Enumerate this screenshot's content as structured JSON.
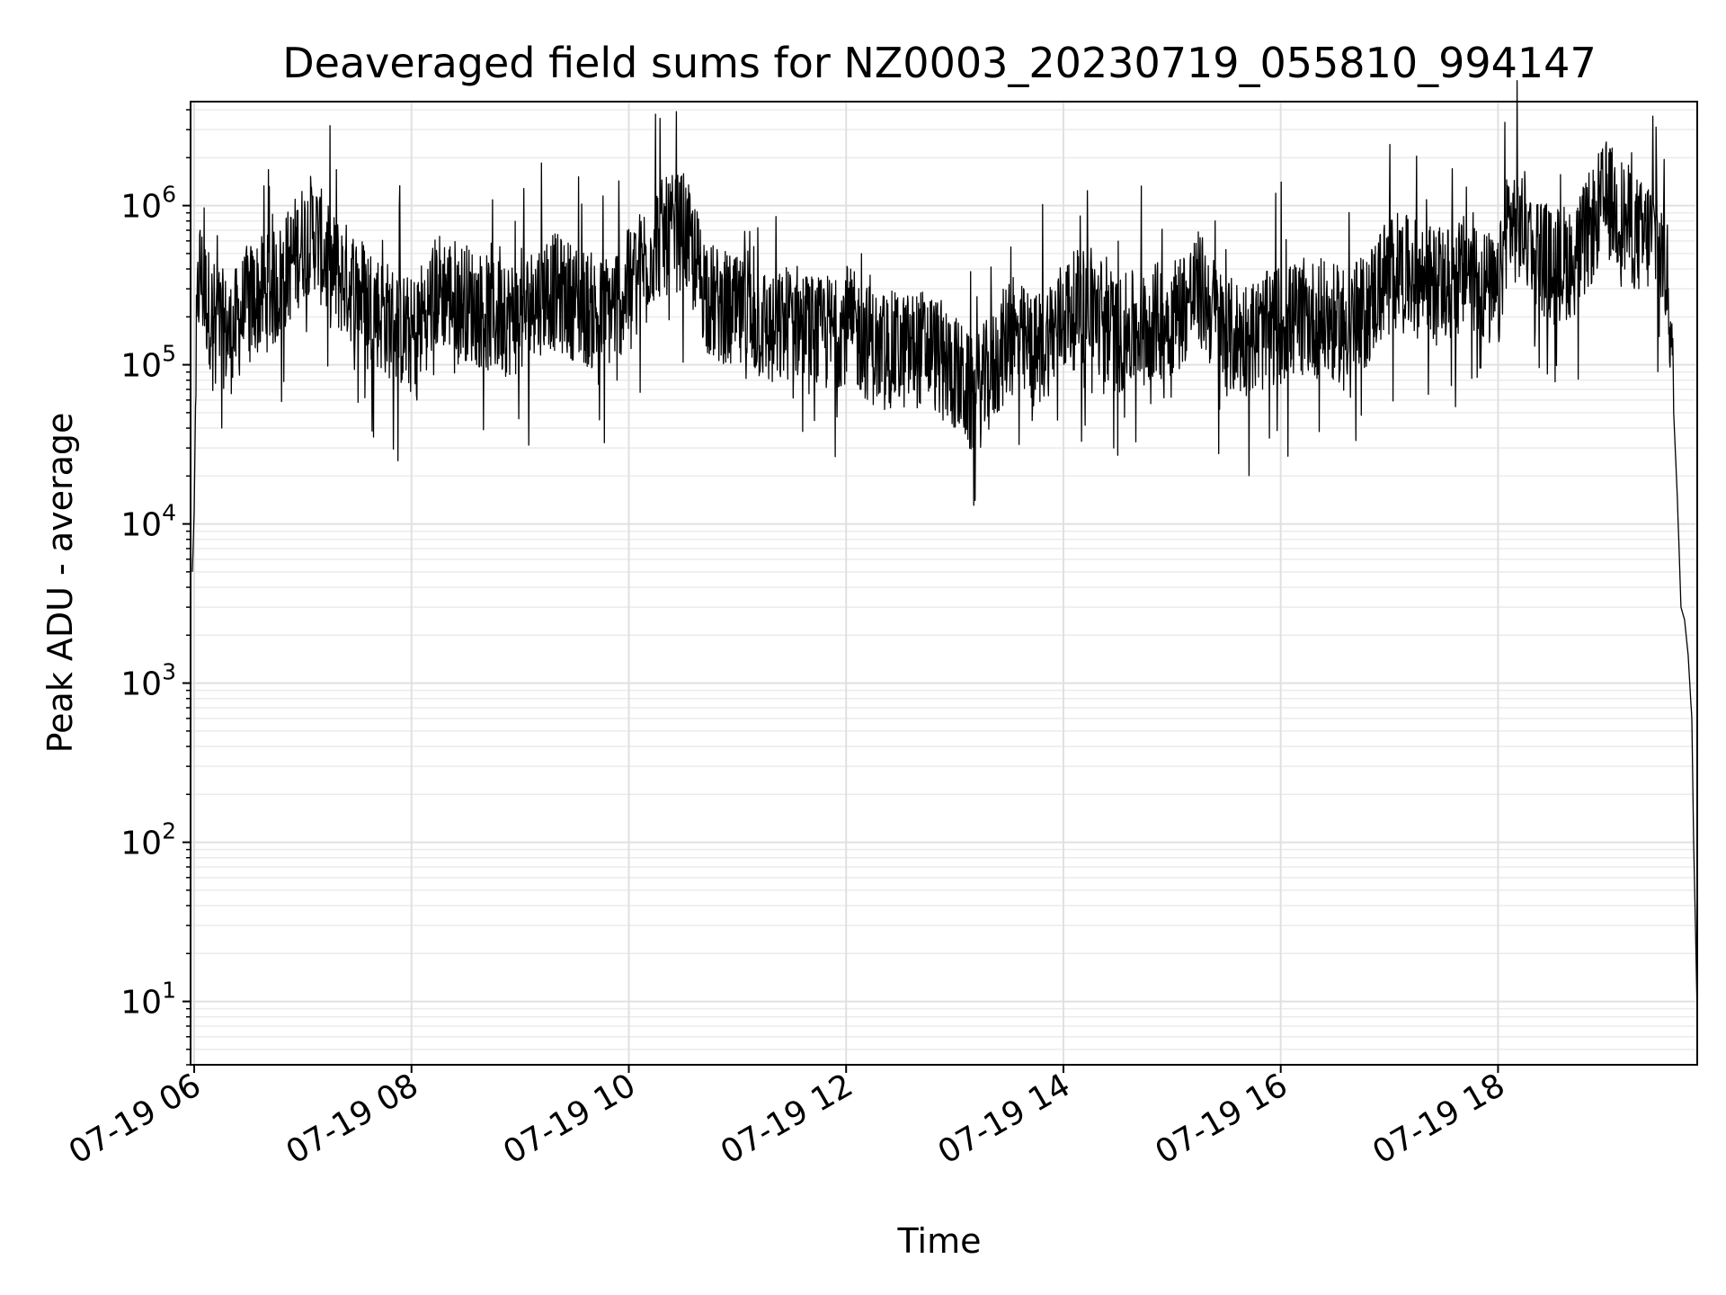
{
  "chart_data": {
    "type": "line",
    "title": "Deaveraged field sums for NZ0003_20230719_055810_994147",
    "xlabel": "Time",
    "ylabel": "Peak ADU - average",
    "y_scale": "log",
    "ylim": [
      4,
      4500000
    ],
    "xlim": [
      "07-19 05:58",
      "07-19 19:50"
    ],
    "grid": true,
    "line_color": "#000000",
    "x_ticks": [
      {
        "value": "07-19 06:00",
        "label": "07-19 06"
      },
      {
        "value": "07-19 08:00",
        "label": "07-19 08"
      },
      {
        "value": "07-19 10:00",
        "label": "07-19 10"
      },
      {
        "value": "07-19 12:00",
        "label": "07-19 12"
      },
      {
        "value": "07-19 14:00",
        "label": "07-19 14"
      },
      {
        "value": "07-19 16:00",
        "label": "07-19 16"
      },
      {
        "value": "07-19 18:00",
        "label": "07-19 18"
      }
    ],
    "y_ticks": [
      {
        "value": 10,
        "base": "10",
        "exp": "1"
      },
      {
        "value": 100,
        "base": "10",
        "exp": "2"
      },
      {
        "value": 1000,
        "base": "10",
        "exp": "3"
      },
      {
        "value": 10000,
        "base": "10",
        "exp": "4"
      },
      {
        "value": 100000,
        "base": "10",
        "exp": "5"
      },
      {
        "value": 1000000,
        "base": "10",
        "exp": "6"
      }
    ],
    "x": [
      "07-19 05:59",
      "07-19 06:00",
      "07-19 06:01",
      "07-19 06:02",
      "07-19 06:03",
      "07-19 06:05",
      "07-19 06:10",
      "07-19 06:20",
      "07-19 06:30",
      "07-19 06:45",
      "07-19 07:00",
      "07-19 07:06",
      "07-19 07:15",
      "07-19 07:30",
      "07-19 07:45",
      "07-19 08:00",
      "07-19 08:15",
      "07-19 08:30",
      "07-19 08:45",
      "07-19 09:00",
      "07-19 09:15",
      "07-19 09:30",
      "07-19 09:45",
      "07-19 10:00",
      "07-19 10:15",
      "07-19 10:30",
      "07-19 10:45",
      "07-19 11:00",
      "07-19 11:15",
      "07-19 11:20",
      "07-19 11:30",
      "07-19 11:45",
      "07-19 12:00",
      "07-19 12:15",
      "07-19 12:30",
      "07-19 12:45",
      "07-19 13:00",
      "07-19 13:10",
      "07-19 13:20",
      "07-19 13:30",
      "07-19 13:45",
      "07-19 14:00",
      "07-19 14:15",
      "07-19 14:30",
      "07-19 14:45",
      "07-19 15:00",
      "07-19 15:15",
      "07-19 15:30",
      "07-19 15:45",
      "07-19 16:00",
      "07-19 16:15",
      "07-19 16:30",
      "07-19 16:45",
      "07-19 17:00",
      "07-19 17:15",
      "07-19 17:30",
      "07-19 17:45",
      "07-19 18:00",
      "07-19 18:05",
      "07-19 18:15",
      "07-19 18:30",
      "07-19 18:45",
      "07-19 18:55",
      "07-19 19:00",
      "07-19 19:15",
      "07-19 19:20",
      "07-19 19:25",
      "07-19 19:30",
      "07-19 19:33",
      "07-19 19:35",
      "07-19 19:37",
      "07-19 19:39",
      "07-19 19:41",
      "07-19 19:43",
      "07-19 19:45",
      "07-19 19:47",
      "07-19 19:48",
      "07-19 19:49",
      "07-19 19:50"
    ],
    "y": [
      5000,
      12000,
      90000,
      250000,
      400000,
      300000,
      200000,
      150000,
      250000,
      300000,
      600000,
      700000,
      400000,
      300000,
      200000,
      150000,
      300000,
      250000,
      200000,
      200000,
      300000,
      250000,
      200000,
      300000,
      600000,
      700000,
      250000,
      200000,
      180000,
      150000,
      200000,
      150000,
      180000,
      130000,
      120000,
      130000,
      90000,
      60000,
      90000,
      150000,
      120000,
      200000,
      250000,
      150000,
      180000,
      200000,
      300000,
      150000,
      150000,
      180000,
      200000,
      180000,
      200000,
      400000,
      350000,
      300000,
      400000,
      250000,
      800000,
      700000,
      400000,
      500000,
      900000,
      1100000,
      700000,
      600000,
      700000,
      500000,
      400000,
      200000,
      50000,
      15000,
      3000,
      2500,
      1500,
      600,
      100,
      30,
      8
    ]
  }
}
